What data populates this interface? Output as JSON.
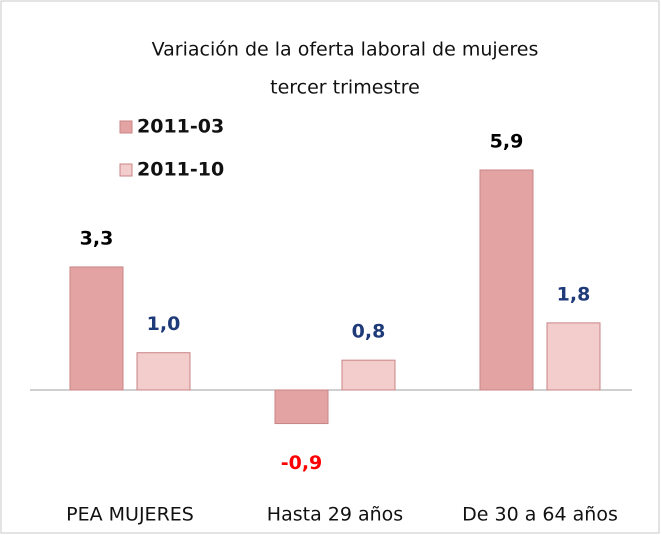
{
  "chart_data": {
    "type": "bar",
    "title": "Variación de la oferta laboral de mujeres",
    "subtitle": "tercer trimestre",
    "categories": [
      "PEA MUJERES",
      "Hasta 29 años",
      "De 30 a 64 años"
    ],
    "series": [
      {
        "name": "2011-03",
        "color": "#e3a3a3",
        "label_color": "#000000",
        "values": [
          3.3,
          -0.9,
          5.9
        ],
        "value_labels": [
          "3,3",
          "-0,9",
          "5,9"
        ]
      },
      {
        "name": "2011-10",
        "color": "#f3cccc",
        "label_color": "#1f3a78",
        "values": [
          1.0,
          0.8,
          1.8
        ],
        "value_labels": [
          "1,0",
          "0,8",
          "1,8"
        ]
      }
    ],
    "negative_label_color": "#ff0000",
    "legend": "top-left"
  }
}
